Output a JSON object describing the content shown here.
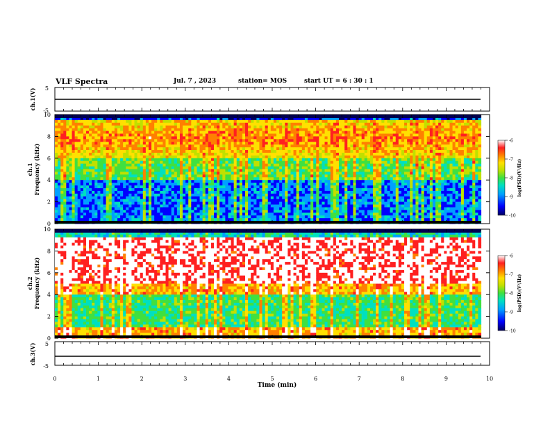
{
  "header": {
    "title": "VLF Spectra",
    "date": "Jul. 7 , 2023",
    "station": "station= MOS",
    "start": "start UT = 6 : 30 : 1"
  },
  "chart_data": [
    {
      "type": "line",
      "name_label": "ch.1(V)",
      "ylabel": "ch.1(V)",
      "ylim": [
        -5,
        5
      ],
      "yticks": [
        "5",
        "-5"
      ],
      "x": [
        0,
        9.8
      ],
      "y": [
        0,
        0
      ]
    },
    {
      "type": "heatmap",
      "ylabel": "ch.1\nFrequency (kHz)",
      "ylabel_lines": [
        "ch.1",
        "Frequency (kHz)"
      ],
      "xlim": [
        0,
        10
      ],
      "ylim": [
        0,
        10
      ],
      "yticks": [
        "0",
        "2",
        "4",
        "6",
        "8",
        "10"
      ],
      "x_extent_min": [
        0,
        9.8
      ],
      "colorbar": {
        "label": "log(PSD)(V²/Hz)",
        "range": [
          -10,
          -6
        ],
        "ticks": [
          "-6",
          "-7",
          "-8",
          "-9",
          "-10"
        ]
      },
      "description_bands": "strong emission 6-9 kHz, weaker below 4 kHz"
    },
    {
      "type": "heatmap",
      "ylabel": "ch.2\nFrequency (kHz)",
      "ylabel_lines": [
        "ch.2",
        "Frequency (kHz)"
      ],
      "xlim": [
        0,
        10
      ],
      "ylim": [
        0,
        10
      ],
      "yticks": [
        "0",
        "2",
        "4",
        "6",
        "8",
        "10"
      ],
      "x_extent_min": [
        0,
        9.8
      ],
      "colorbar": {
        "label": "log(PSD)(V²/Hz)",
        "range": [
          -10,
          -6
        ],
        "ticks": [
          "-6",
          "-7",
          "-8",
          "-9",
          "-10"
        ]
      },
      "description_bands": "strong emission 5-8 kHz"
    },
    {
      "type": "line",
      "ylabel": "ch.3(V)",
      "ylim": [
        -5,
        5
      ],
      "yticks": [
        "5",
        "-5"
      ],
      "x": [
        0,
        9.8
      ],
      "y": [
        0,
        0
      ]
    }
  ],
  "xaxis": {
    "label": "Time (min)",
    "ticks": [
      "0",
      "1",
      "2",
      "3",
      "4",
      "5",
      "6",
      "7",
      "8",
      "9",
      "10"
    ],
    "range": [
      0,
      10
    ]
  },
  "colors": {
    "scale": [
      "#000060",
      "#0000ff",
      "#00a0ff",
      "#00e0c0",
      "#40e040",
      "#c0e000",
      "#ffe000",
      "#ff8000",
      "#ff2020",
      "#ffffff"
    ]
  }
}
